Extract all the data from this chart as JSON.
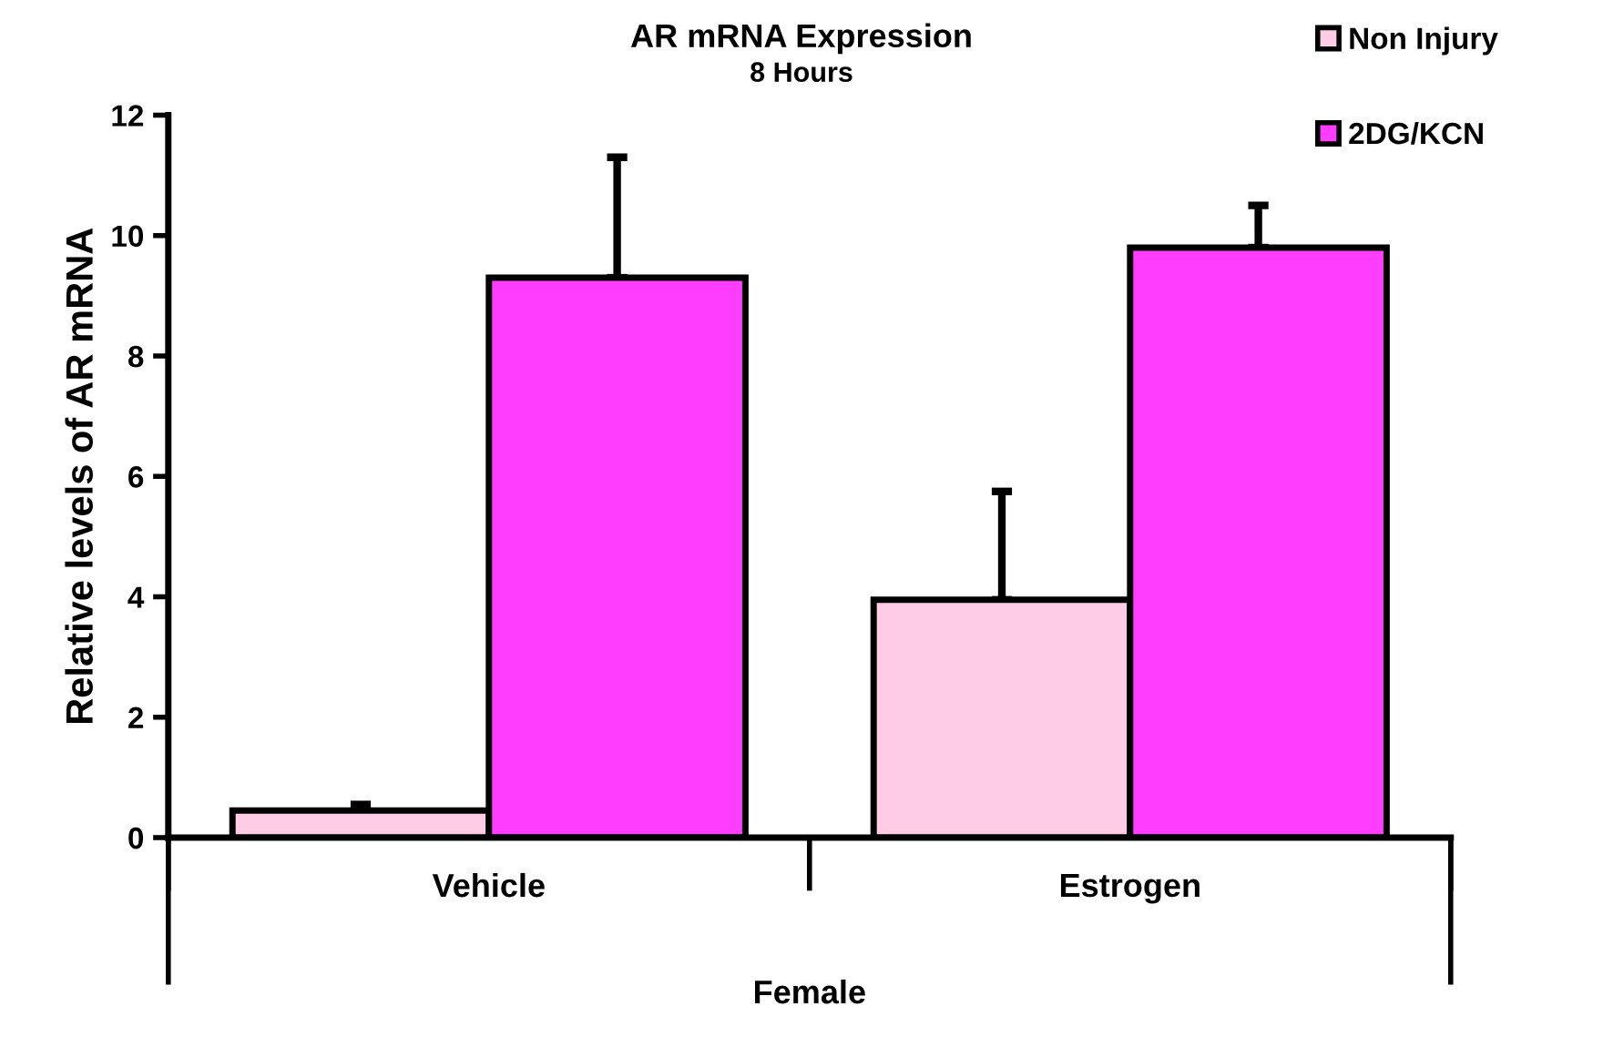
{
  "chart_data": {
    "type": "bar",
    "title": "AR mRNA Expression",
    "subtitle": "8 Hours",
    "ylabel": "Relative levels of AR mRNA",
    "xlabel": "Female",
    "categories": [
      "Vehicle",
      "Estrogen"
    ],
    "series": [
      {
        "name": "Non Injury",
        "color": "#ffcce6",
        "values": [
          0.45,
          3.95
        ],
        "errors": [
          [
            0.45,
            0.55
          ],
          [
            3.95,
            5.75
          ]
        ]
      },
      {
        "name": "2DG/KCN",
        "color": "#ff3dff",
        "values": [
          9.3,
          9.8
        ],
        "errors": [
          [
            9.3,
            11.3
          ],
          [
            9.8,
            10.5
          ]
        ]
      }
    ],
    "ylim": [
      0,
      12
    ],
    "yticks": [
      0,
      2,
      4,
      6,
      8,
      10,
      12
    ],
    "grid": false,
    "legend": "top right"
  }
}
